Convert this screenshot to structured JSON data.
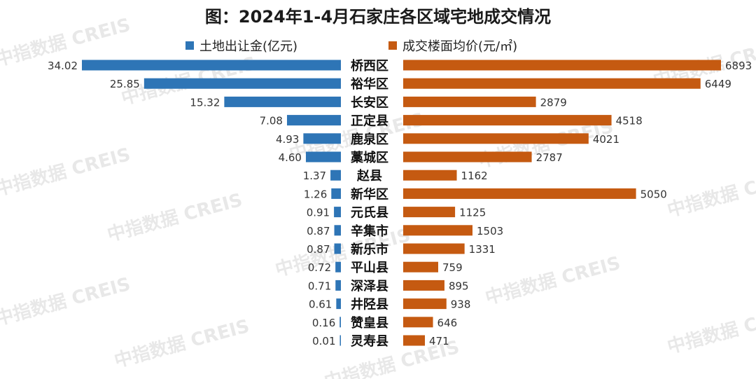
{
  "title": "图：2024年1-4月石家庄各区域宅地成交情况",
  "watermark": "中指数据 CREIS",
  "colors": {
    "left": "#2E75B6",
    "right": "#C55A11"
  },
  "chart_data": {
    "type": "bar",
    "orientation": "horizontal-butterfly",
    "categories": [
      "桥西区",
      "裕华区",
      "长安区",
      "正定县",
      "鹿泉区",
      "藁城区",
      "赵县",
      "新华区",
      "元氏县",
      "辛集市",
      "新乐市",
      "平山县",
      "深泽县",
      "井陉县",
      "赞皇县",
      "灵寿县"
    ],
    "series": [
      {
        "name": "土地出让金(亿元)",
        "side": "left",
        "values": [
          34.02,
          25.85,
          15.32,
          7.08,
          4.93,
          4.6,
          1.37,
          1.26,
          0.91,
          0.87,
          0.87,
          0.72,
          0.71,
          0.61,
          0.16,
          0.01
        ],
        "labels": [
          "34.02",
          "25.85",
          "15.32",
          "7.08",
          "4.93",
          "4.60",
          "1.37",
          "1.26",
          "0.91",
          "0.87",
          "0.87",
          "0.72",
          "0.71",
          "0.61",
          "0.16",
          "0.01"
        ]
      },
      {
        "name": "成交楼面均价(元/㎡)",
        "side": "right",
        "values": [
          6893,
          6449,
          2879,
          4518,
          4021,
          2787,
          1162,
          5050,
          1125,
          1503,
          1331,
          759,
          895,
          938,
          646,
          471
        ],
        "labels": [
          "6893",
          "6449",
          "2879",
          "4518",
          "4021",
          "2787",
          "1162",
          "5050",
          "1125",
          "1503",
          "1331",
          "759",
          "895",
          "938",
          "646",
          "471"
        ]
      }
    ],
    "legend_position": "top",
    "grid": false
  }
}
